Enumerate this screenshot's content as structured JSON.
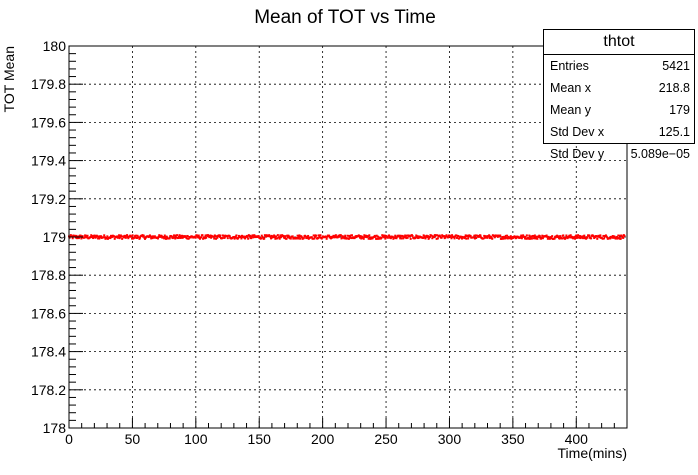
{
  "chart_data": {
    "type": "scatter",
    "title": "Mean of TOT vs Time",
    "xlabel": "Time(mins)",
    "ylabel": "TOT Mean",
    "xlim": [
      0,
      440
    ],
    "ylim": [
      178,
      180
    ],
    "x_ticks": [
      0,
      50,
      100,
      150,
      200,
      250,
      300,
      350,
      400
    ],
    "y_ticks": [
      178,
      178.2,
      178.4,
      178.6,
      178.8,
      179,
      179.2,
      179.4,
      179.6,
      179.8,
      180
    ],
    "grid": true,
    "marker_color": "#ff0000",
    "series": [
      {
        "x_range": [
          0,
          438
        ],
        "y_mean": 179.0,
        "y_spread": 0.01,
        "count": 5421
      }
    ]
  },
  "stats": {
    "title": "thtot",
    "rows": [
      {
        "label": "Entries",
        "value": "5421"
      },
      {
        "label": "Mean x",
        "value": "218.8"
      },
      {
        "label": "Mean y",
        "value": "179"
      },
      {
        "label": "Std Dev x",
        "value": "125.1"
      },
      {
        "label": "Std Dev y",
        "value": "5.089e−05"
      }
    ]
  }
}
